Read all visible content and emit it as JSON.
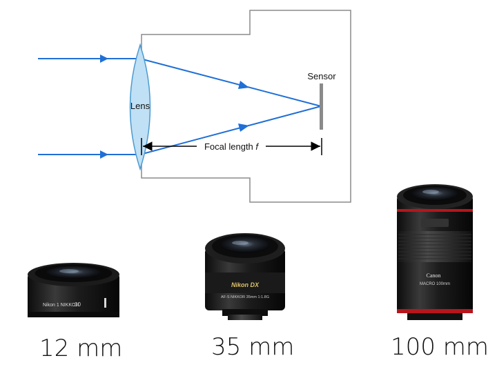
{
  "diagram": {
    "lens_label": "Lens",
    "sensor_label": "Sensor",
    "focal_label_prefix": "Focal length ",
    "focal_label_var": "f",
    "colors": {
      "ray": "#1f6fd6",
      "lens_fill": "#bfe0f5",
      "lens_stroke": "#4b9ad0",
      "body": "#8a8a8a",
      "sensor": "#8a8a8a"
    }
  },
  "lenses": [
    {
      "caption": "12 mm",
      "brand_text": "Nikon 1 NIKKOR",
      "focal_text": "10"
    },
    {
      "caption": "35 mm",
      "brand_text": "Nikon DX",
      "model_text": "AF-S NIKKOR 35mm 1:1.8G"
    },
    {
      "caption": "100 mm",
      "brand_text": "Canon",
      "model_text": "MACRO 100mm"
    }
  ]
}
